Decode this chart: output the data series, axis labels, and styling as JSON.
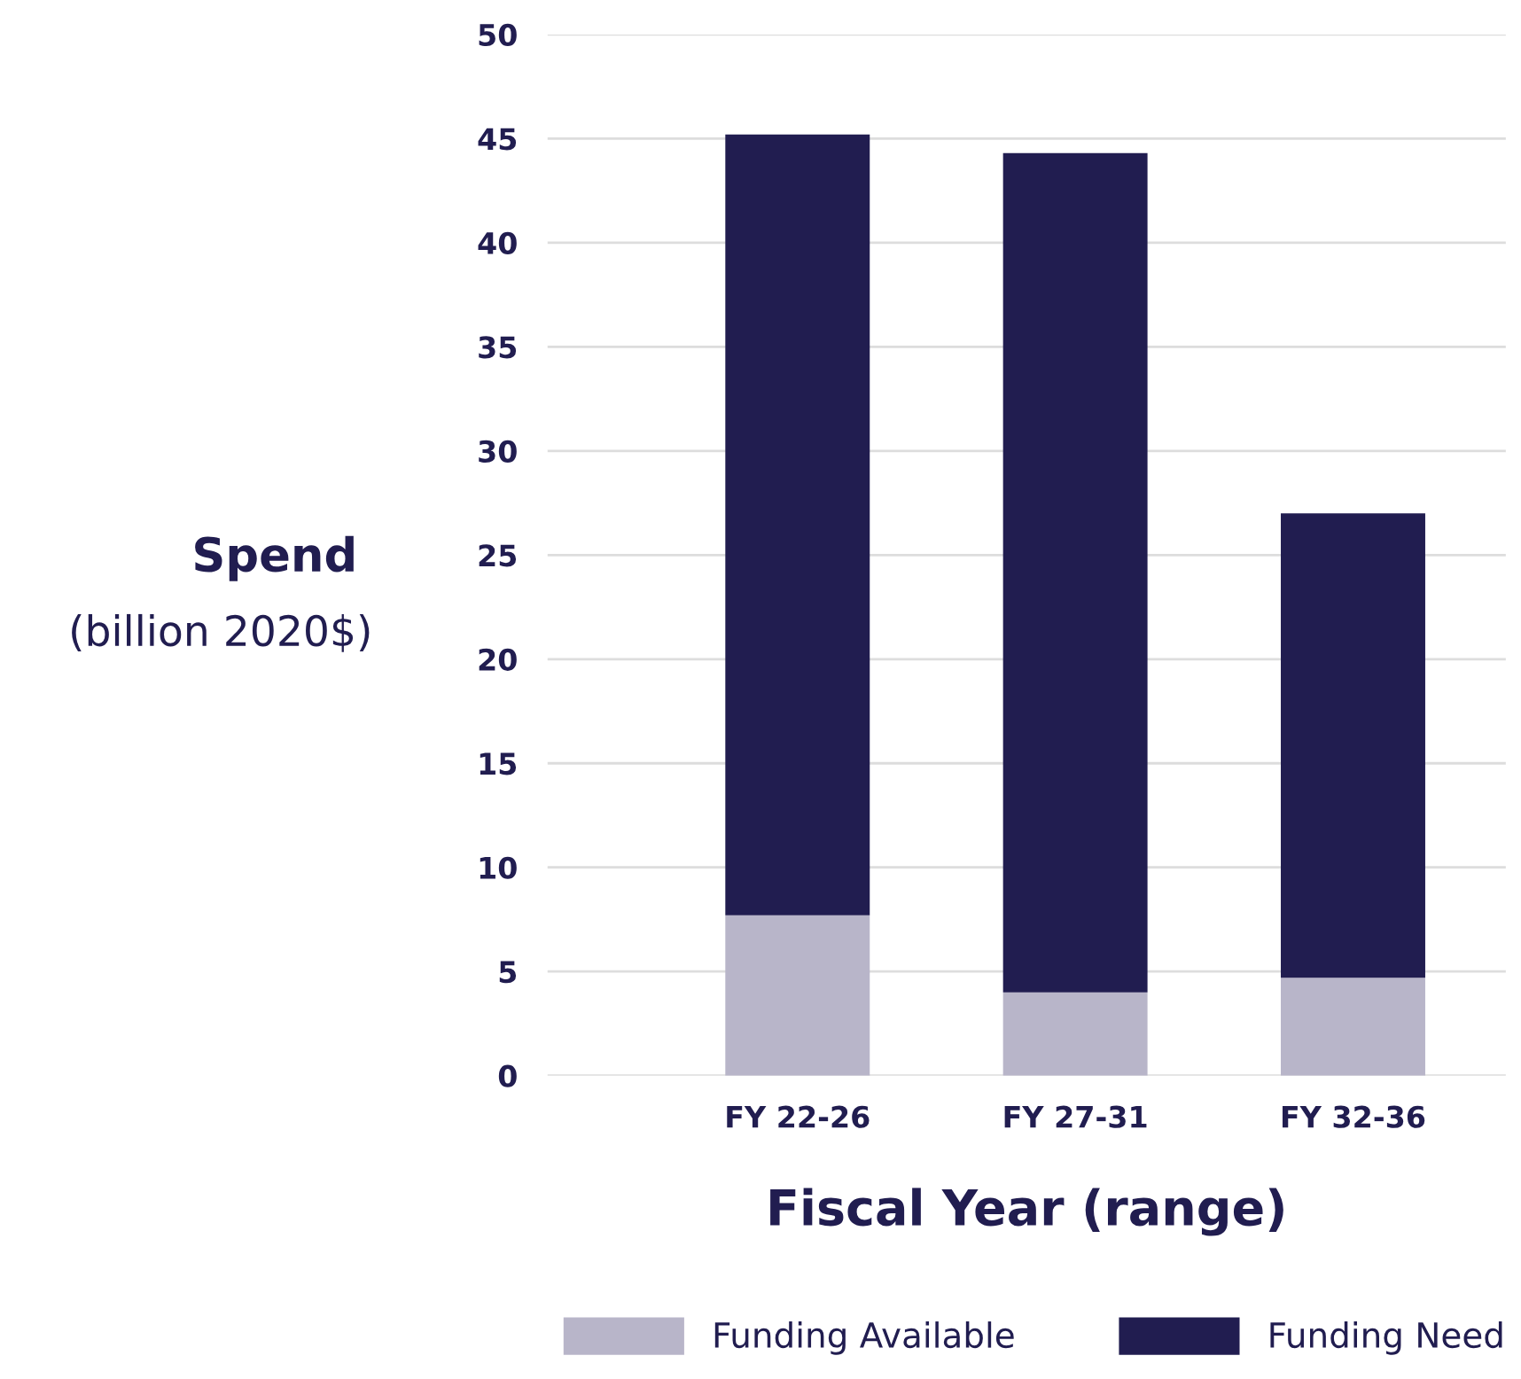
{
  "chart_data": {
    "type": "bar",
    "stacked": true,
    "xlabel": "Fiscal Year (range)",
    "ylabel": "Spend\n(billion 2020$)",
    "categories": [
      "FY 22-26",
      "FY 27-31",
      "FY 32-36"
    ],
    "series": [
      {
        "name": "Funding Available",
        "color": "#b8b5c9",
        "values": [
          7.7,
          4.0,
          4.7
        ]
      },
      {
        "name": "Funding Need",
        "color": "#211d50",
        "values": [
          37.5,
          40.3,
          22.3
        ]
      }
    ],
    "ylim": [
      0,
      50
    ],
    "yticks": [
      0,
      5,
      10,
      15,
      20,
      25,
      30,
      35,
      40,
      45,
      50
    ],
    "grid": "y",
    "legend": "bottom"
  }
}
